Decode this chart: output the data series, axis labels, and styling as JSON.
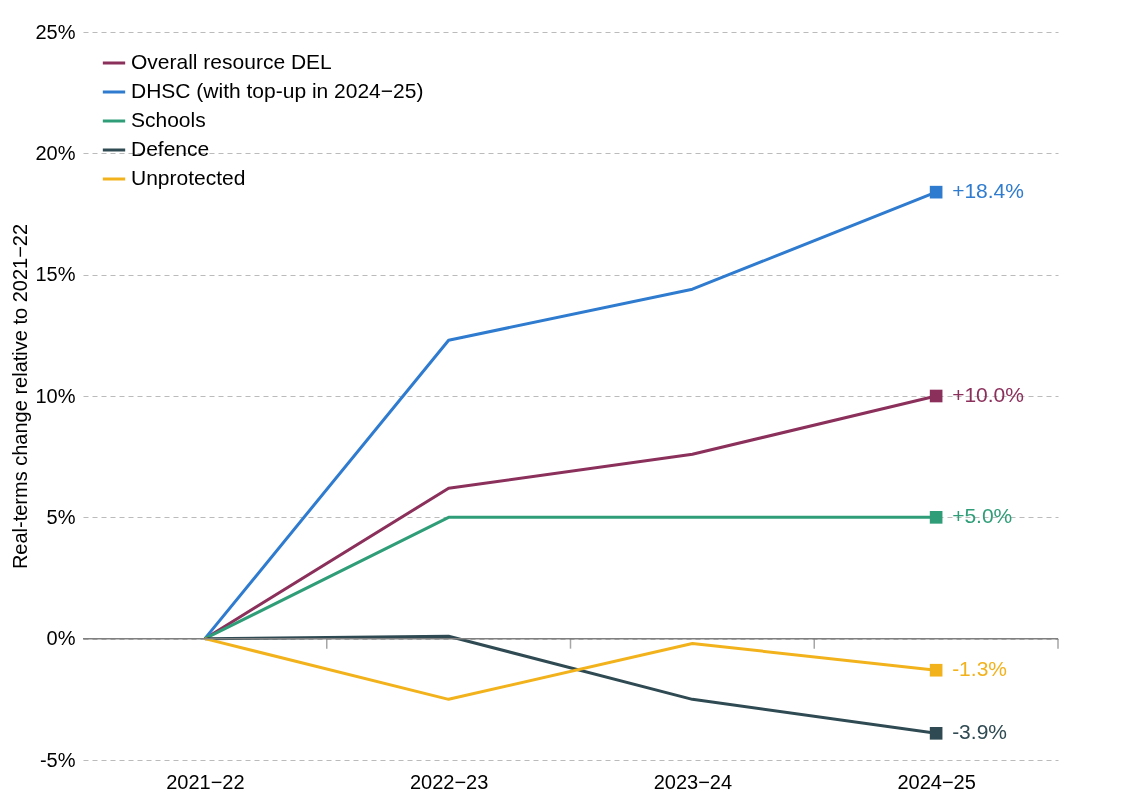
{
  "chart_data": {
    "type": "line",
    "ylabel": "Real-terms change relative to 2021−22",
    "categories": [
      "2021−22",
      "2022−23",
      "2023−24",
      "2024−25"
    ],
    "series": [
      {
        "name": "Overall resource DEL",
        "color": "#8b2f5b",
        "values": [
          0,
          6.2,
          7.6,
          10.0
        ],
        "value_labels": [
          null,
          null,
          null,
          "+10.0%"
        ]
      },
      {
        "name": "DHSC (with top-up in 2024−25)",
        "color": "#2e7bcf",
        "values": [
          0,
          12.3,
          14.4,
          18.4
        ],
        "value_labels": [
          null,
          null,
          null,
          "+18.4%"
        ]
      },
      {
        "name": "Schools",
        "color": "#2f9e78",
        "values": [
          0,
          5.0,
          5.0,
          5.0
        ],
        "value_labels": [
          null,
          null,
          null,
          "+5.0%"
        ]
      },
      {
        "name": "Defence",
        "color": "#2f4a52",
        "values": [
          0,
          0.1,
          -2.5,
          -3.9
        ],
        "value_labels": [
          null,
          null,
          null,
          "-3.9%"
        ]
      },
      {
        "name": "Unprotected",
        "color": "#f2b21c",
        "values": [
          0,
          -2.5,
          -0.2,
          -1.3
        ],
        "value_labels": [
          null,
          null,
          null,
          "-1.3%"
        ]
      }
    ],
    "ylim": [
      -5,
      25
    ],
    "yticks": [
      {
        "value": -5,
        "label": "-5%"
      },
      {
        "value": 0,
        "label": "0%"
      },
      {
        "value": 5,
        "label": "5%"
      },
      {
        "value": 10,
        "label": "10%"
      },
      {
        "value": 15,
        "label": "15%"
      },
      {
        "value": 20,
        "label": "20%"
      },
      {
        "value": 25,
        "label": "25%"
      }
    ],
    "ref_lines": [
      {
        "axis": "y",
        "value": 0,
        "color": "#808080"
      }
    ],
    "grid": "y",
    "legend": "top left",
    "line_style": "solid"
  }
}
